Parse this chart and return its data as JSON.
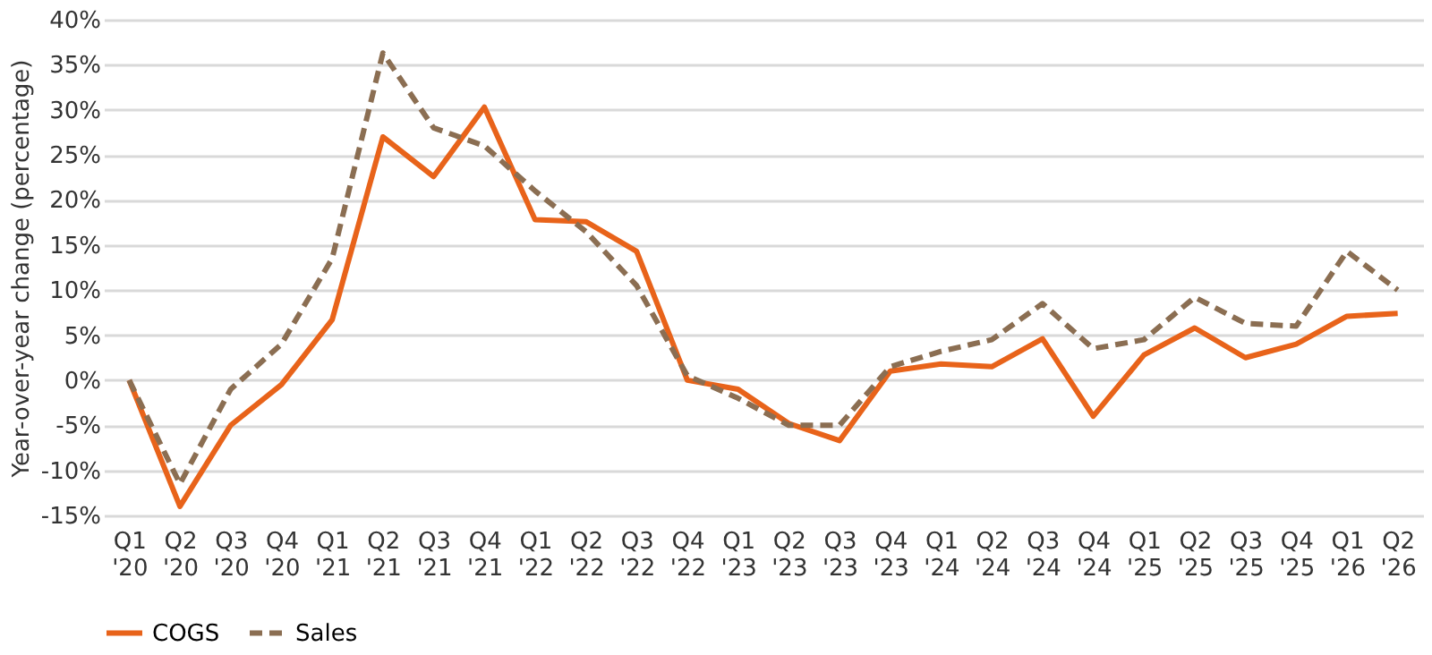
{
  "chart_data": {
    "type": "line",
    "ylabel": "Year-over-year change (percentage)",
    "categories": [
      "Q1 '20",
      "Q2 '20",
      "Q3 '20",
      "Q4 '20",
      "Q1 '21",
      "Q2 '21",
      "Q3 '21",
      "Q4 '21",
      "Q1 '22",
      "Q2 '22",
      "Q3 '22",
      "Q4 '22",
      "Q1 '23",
      "Q2 '23",
      "Q3 '23",
      "Q4 '23",
      "Q1 '24",
      "Q2 '24",
      "Q3 '24",
      "Q4 '24",
      "Q1 '25",
      "Q2 '25",
      "Q3 '25",
      "Q4 '25",
      "Q1 '26",
      "Q2 '26"
    ],
    "series": [
      {
        "name": "COGS",
        "color": "#e8631a",
        "line_style": "solid",
        "values": [
          0,
          -14,
          -5,
          -0.5,
          6.7,
          27,
          22.6,
          30.3,
          17.8,
          17.6,
          14.3,
          0,
          -1,
          -4.8,
          -6.7,
          1,
          1.8,
          1.5,
          4.6,
          -4,
          2.8,
          5.8,
          2.5,
          4,
          7.1,
          7.4
        ]
      },
      {
        "name": "Sales",
        "color": "#8b6e52",
        "line_style": "dashed",
        "values": [
          0,
          -11.5,
          -1,
          4,
          13.5,
          36.3,
          28,
          26,
          21,
          16.5,
          10.5,
          0.5,
          -2,
          -5,
          -5,
          1.5,
          3.2,
          4.5,
          8.5,
          3.5,
          4.5,
          9.2,
          6.3,
          6,
          14.3,
          10
        ]
      }
    ],
    "ylim": [
      -15,
      40
    ],
    "yticks": [
      {
        "value": -15,
        "label": "-15%"
      },
      {
        "value": -10,
        "label": "-10%"
      },
      {
        "value": -5,
        "label": "-5%"
      },
      {
        "value": 0,
        "label": "0%"
      },
      {
        "value": 5,
        "label": "5%"
      },
      {
        "value": 10,
        "label": "10%"
      },
      {
        "value": 15,
        "label": "15%"
      },
      {
        "value": 20,
        "label": "20%"
      },
      {
        "value": 25,
        "label": "25%"
      },
      {
        "value": 30,
        "label": "30%"
      },
      {
        "value": 35,
        "label": "35%"
      },
      {
        "value": 40,
        "label": "40%"
      }
    ],
    "grid": "y",
    "legend": "bottom",
    "marker": "none"
  }
}
